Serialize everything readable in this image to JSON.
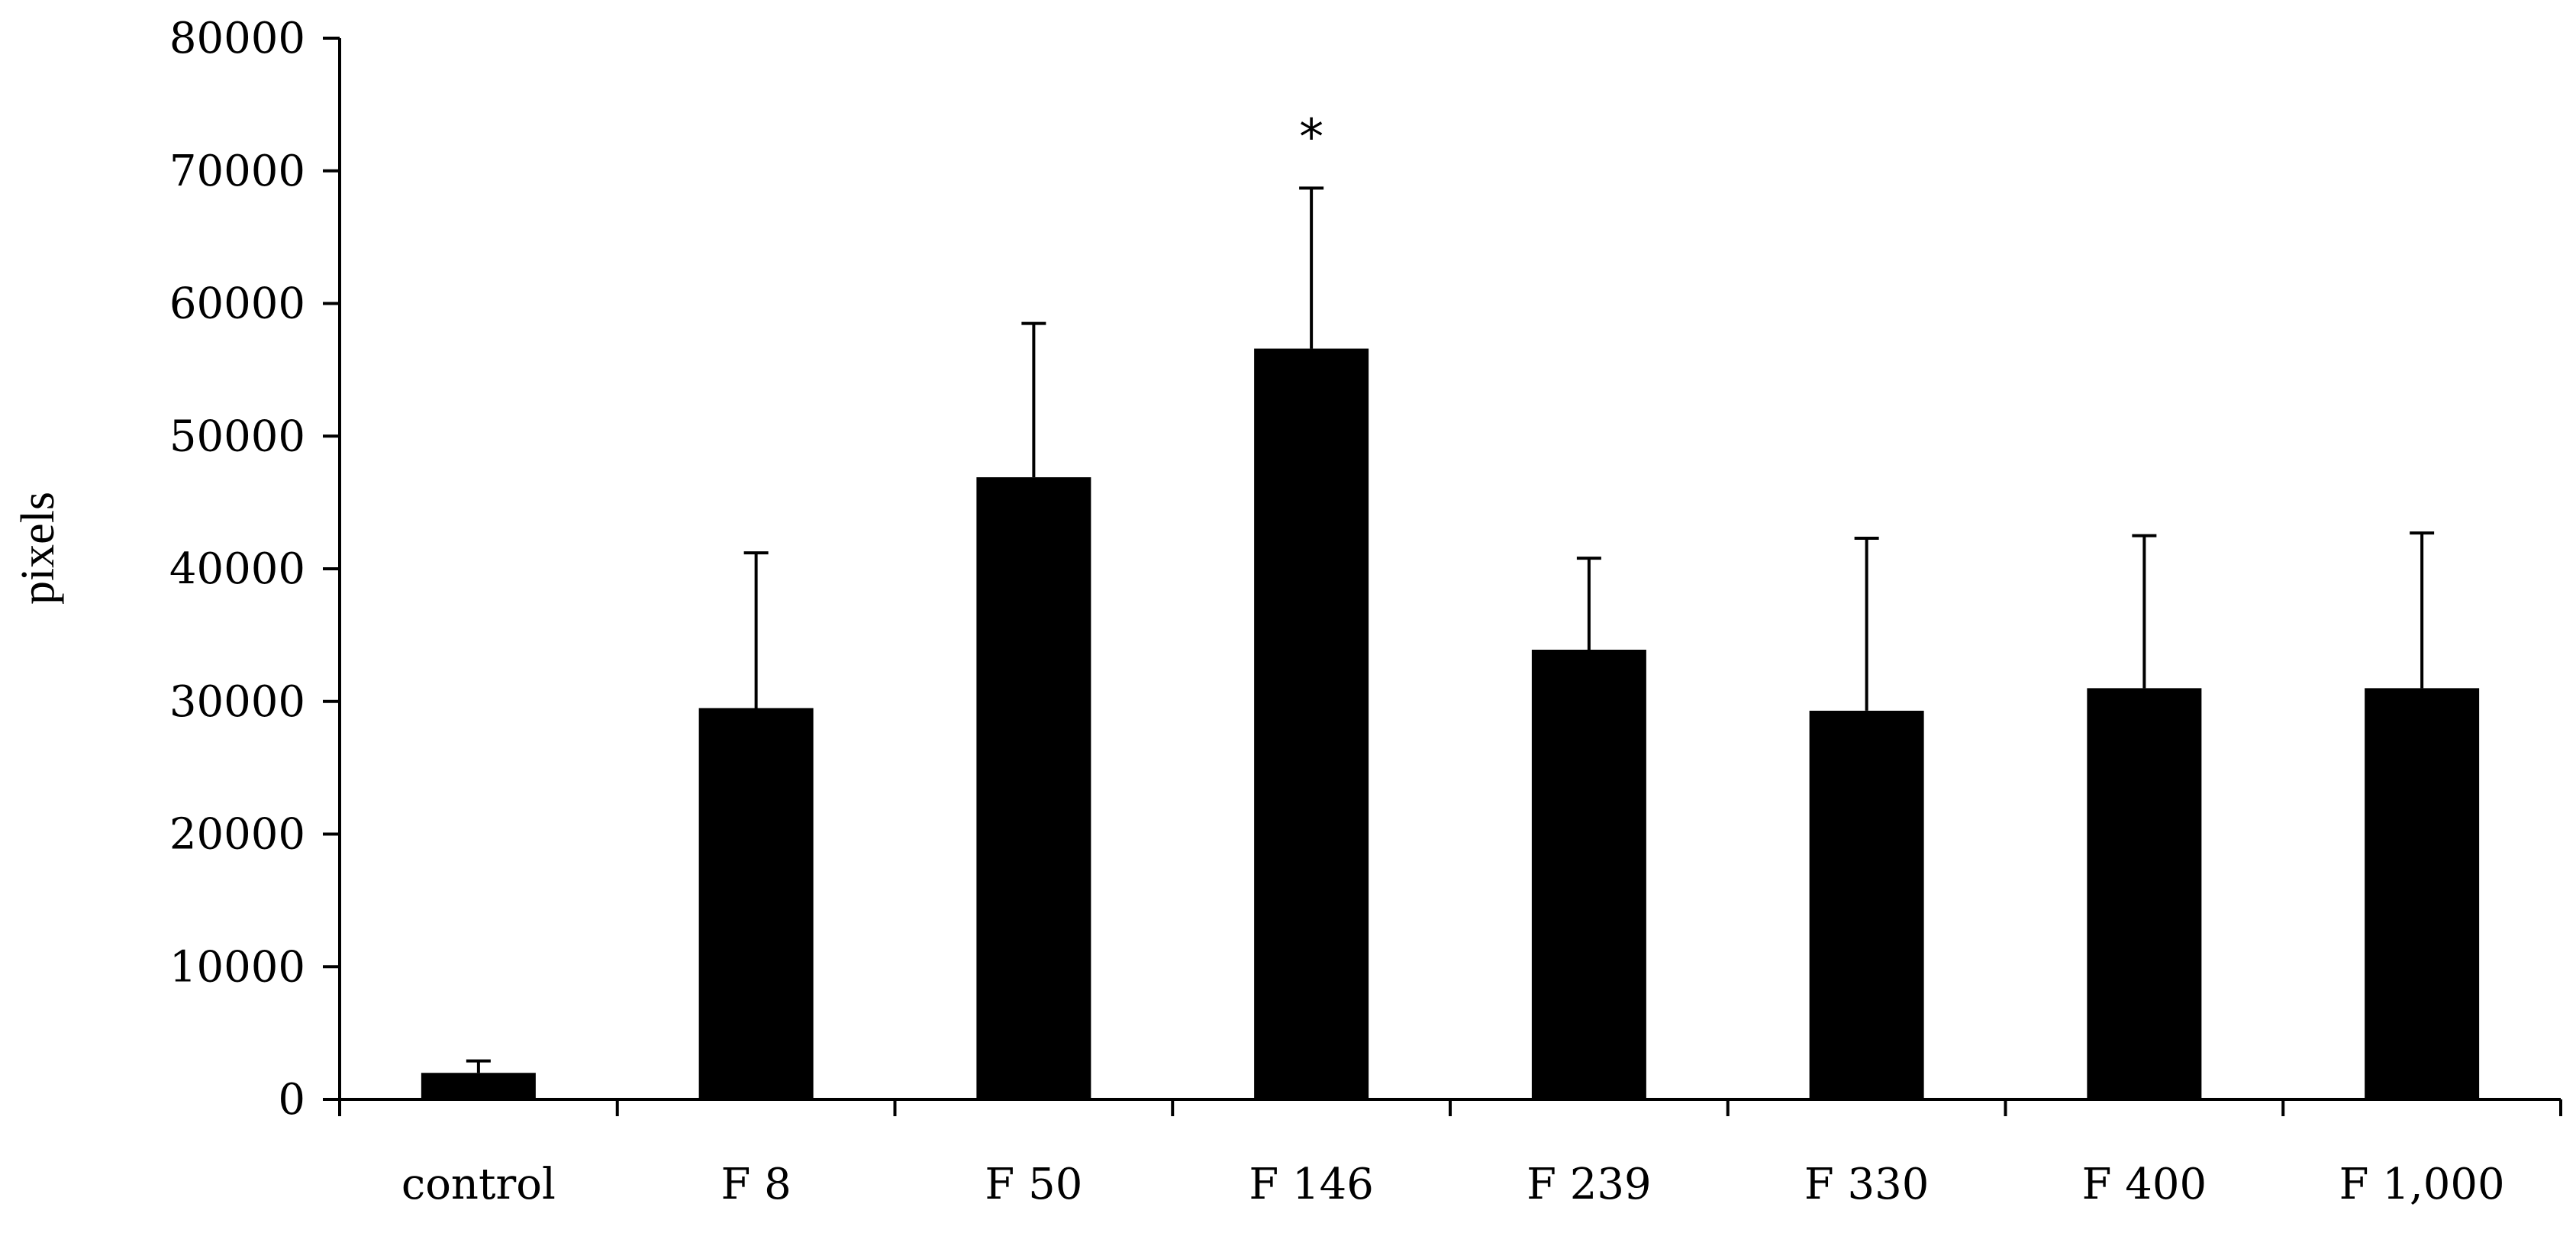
{
  "chart_data": {
    "type": "bar",
    "ylabel": "pixels",
    "ylim": [
      0,
      80000
    ],
    "yticks": [
      "0",
      "10000",
      "20000",
      "30000",
      "40000",
      "50000",
      "60000",
      "70000",
      "80000"
    ],
    "categories": [
      "control",
      "F 8",
      "F 50",
      "F 146",
      "F 239",
      "F 330",
      "F 400",
      "F 1,000"
    ],
    "series": [
      {
        "values": [
          2000,
          29500,
          46900,
          56600,
          33900,
          29300,
          31000,
          31000
        ],
        "error_plus": [
          900,
          11700,
          11600,
          12100,
          6900,
          13000,
          11500,
          11700
        ]
      }
    ],
    "annotations": [
      {
        "category": "F 146",
        "text": "*"
      }
    ],
    "bar_color": "#000000",
    "grid": false,
    "legend": "none"
  }
}
